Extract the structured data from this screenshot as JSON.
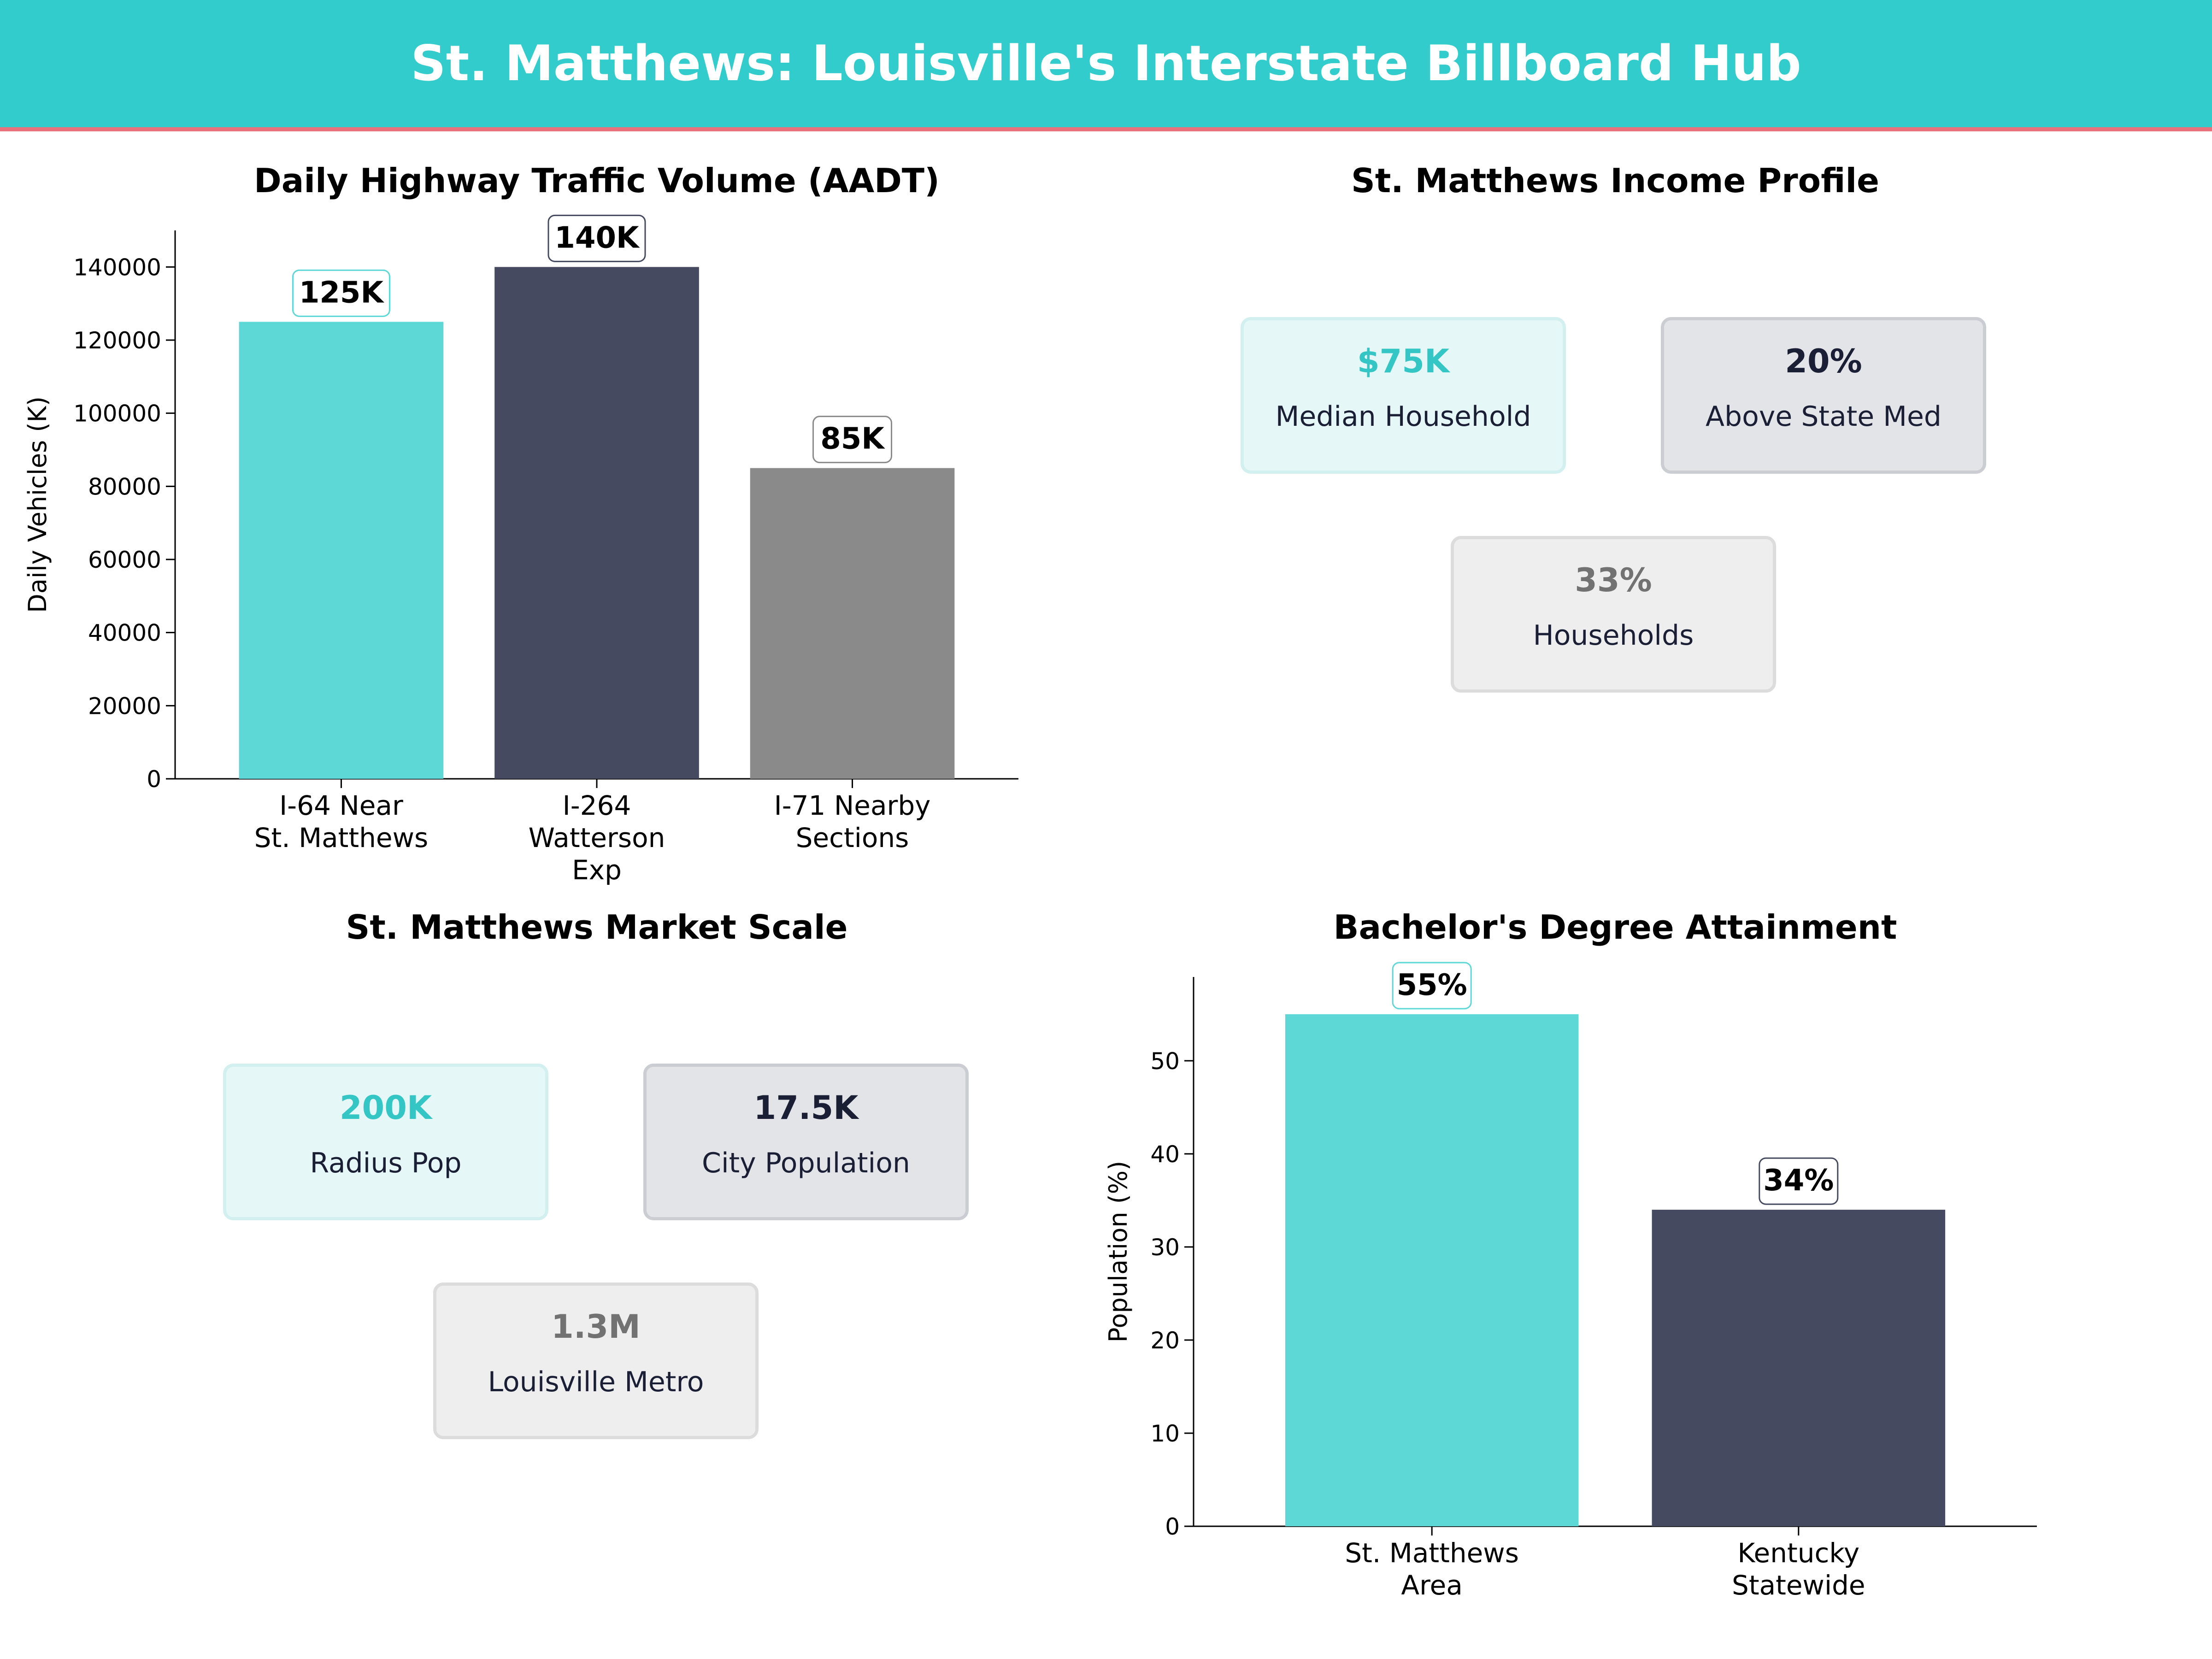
{
  "title": "St. Matthews: Louisville's Interstate Billboard Hub",
  "colors": {
    "header": "#33cccc",
    "header_accent": "#e8717c",
    "teal": "#5ed8d6",
    "navy": "#454a60",
    "gray": "#8a8a8a"
  },
  "traffic_panel_title": "Daily Highway Traffic Volume (AADT)",
  "income_panel": {
    "title": "St. Matthews Income Profile",
    "cards": [
      {
        "value": "$75K",
        "label": "Median Household"
      },
      {
        "value": "20%",
        "label": "Above State Med"
      },
      {
        "value": "33%",
        "label": "Households"
      }
    ]
  },
  "market_panel": {
    "title": "St. Matthews Market Scale",
    "cards": [
      {
        "value": "200K",
        "label": "Radius Pop"
      },
      {
        "value": "17.5K",
        "label": "City Population"
      },
      {
        "value": "1.3M",
        "label": "Louisville Metro"
      }
    ]
  },
  "education_panel_title": "Bachelor's Degree Attainment",
  "chart_data": [
    {
      "type": "bar",
      "title": "Daily Highway Traffic Volume (AADT)",
      "categories": [
        "I-64 Near\nSt. Matthews",
        "I-264\nWatterson\nExp",
        "I-71 Nearby\nSections"
      ],
      "values": [
        125000,
        140000,
        85000
      ],
      "data_labels": [
        "125K",
        "140K",
        "85K"
      ],
      "colors": [
        "#5ed8d6",
        "#454a60",
        "#8a8a8a"
      ],
      "xlabel": "",
      "ylabel": "Daily Vehicles (K)",
      "ylim": [
        0,
        150000
      ],
      "yticks": [
        0,
        20000,
        40000,
        60000,
        80000,
        100000,
        120000,
        140000
      ],
      "grid": false
    },
    {
      "type": "bar",
      "title": "Bachelor's Degree Attainment",
      "categories": [
        "St. Matthews\nArea",
        "Kentucky\nStatewide"
      ],
      "values": [
        55,
        34
      ],
      "data_labels": [
        "55%",
        "34%"
      ],
      "colors": [
        "#5ed8d6",
        "#454a60"
      ],
      "xlabel": "",
      "ylabel": "Population (%)",
      "ylim": [
        0,
        59
      ],
      "yticks": [
        0,
        10,
        20,
        30,
        40,
        50
      ],
      "grid": false
    }
  ]
}
